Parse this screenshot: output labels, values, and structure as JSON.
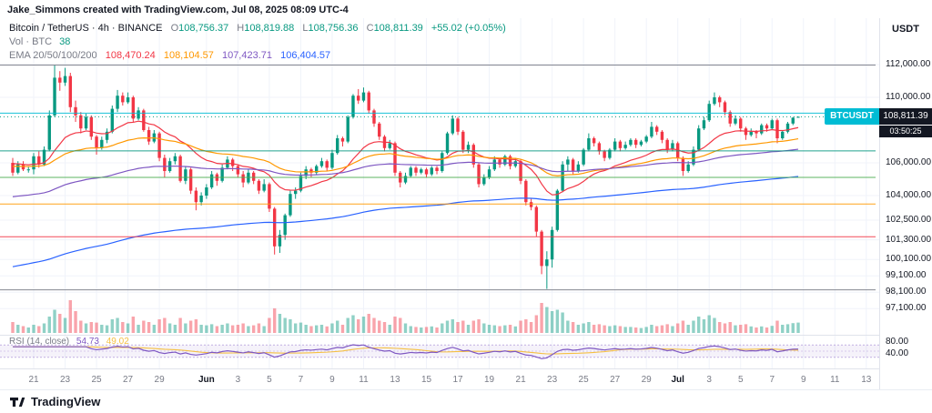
{
  "attribution": "Jake_Simmons created with TradingView.com, Jul 08, 2025 08:09 UTC-4",
  "header": {
    "title": "Bitcoin / TetherUS · 4h · BINANCE",
    "ohlc": {
      "o_label": "O",
      "o": "108,756.37",
      "h_label": "H",
      "h": "108,819.88",
      "l_label": "L",
      "l": "108,756.36",
      "c_label": "C",
      "c": "108,811.39",
      "change": "+55.02 (+0.05%)"
    },
    "volume": {
      "label": "Vol · BTC",
      "value": "38"
    },
    "ema": {
      "label": "EMA 20/50/100/200",
      "values": [
        "108,470.24",
        "108,104.57",
        "107,423.71",
        "106,404.57"
      ]
    }
  },
  "rsi_legend": {
    "label": "RSI (14, close)",
    "value": "54.73",
    "ma_value": "49.02"
  },
  "price_tag": {
    "symbol": "BTCUSDT",
    "price": "108,811.39",
    "countdown": "03:50:25"
  },
  "axis": {
    "currency": "USDT",
    "price_labels": [
      {
        "text": "112,000.00",
        "value": 112000
      },
      {
        "text": "110,000.00",
        "value": 110000
      },
      {
        "text": "106,000.00",
        "value": 106000
      },
      {
        "text": "104,000.00",
        "value": 104000
      },
      {
        "text": "102,500.00",
        "value": 102500
      },
      {
        "text": "101,300.00",
        "value": 101300
      },
      {
        "text": "100,100.00",
        "value": 100100
      },
      {
        "text": "99,100.00",
        "value": 99100
      },
      {
        "text": "98,100.00",
        "value": 98100
      },
      {
        "text": "97,100.00",
        "value": 97100
      }
    ],
    "rsi_labels": [
      {
        "text": "80.00",
        "value": 80
      },
      {
        "text": "40.00",
        "value": 40
      }
    ],
    "time_labels": [
      {
        "text": "21",
        "d": 0
      },
      {
        "text": "23",
        "d": 2
      },
      {
        "text": "25",
        "d": 4
      },
      {
        "text": "27",
        "d": 6
      },
      {
        "text": "29",
        "d": 8
      },
      {
        "text": "Jun",
        "d": 11,
        "major": true
      },
      {
        "text": "3",
        "d": 13
      },
      {
        "text": "5",
        "d": 15
      },
      {
        "text": "7",
        "d": 17
      },
      {
        "text": "9",
        "d": 19
      },
      {
        "text": "11",
        "d": 21
      },
      {
        "text": "13",
        "d": 23
      },
      {
        "text": "15",
        "d": 25
      },
      {
        "text": "17",
        "d": 27
      },
      {
        "text": "19",
        "d": 29
      },
      {
        "text": "21",
        "d": 31
      },
      {
        "text": "23",
        "d": 33
      },
      {
        "text": "25",
        "d": 35
      },
      {
        "text": "27",
        "d": 37
      },
      {
        "text": "29",
        "d": 39
      },
      {
        "text": "Jul",
        "d": 41,
        "major": true
      },
      {
        "text": "3",
        "d": 43
      },
      {
        "text": "5",
        "d": 45
      },
      {
        "text": "7",
        "d": 47
      },
      {
        "text": "9",
        "d": 49
      },
      {
        "text": "11",
        "d": 51
      },
      {
        "text": "13",
        "d": 53
      }
    ]
  },
  "footer": {
    "brand": "TradingView"
  },
  "chart_data": {
    "type": "candlestick",
    "title": "Bitcoin / TetherUS",
    "symbol": "BTCUSDT",
    "exchange": "BINANCE",
    "interval": "4h",
    "yaxis_range": [
      97000,
      112600
    ],
    "volume_unit": "BTC",
    "last_volume": 38,
    "bars_per_label_day": 3,
    "time_label_offset_bars": 4,
    "fib": [
      {
        "level": "1",
        "text": "1 (111,973.72)",
        "value": 111973.72,
        "color": "#787b86"
      },
      {
        "level": "0.786",
        "text": "0.786 (109,035.27)",
        "value": 109035.27,
        "color": "#00bcd4"
      },
      {
        "level": "0.618",
        "text": "0.618 (106,728.42)",
        "value": 106728.42,
        "color": "#089981"
      },
      {
        "level": "0.5",
        "text": "0.5 (105,108.15)",
        "value": 105108.15,
        "color": "#4caf50"
      },
      {
        "level": "0.382",
        "text": "0.382 (103,487.87)",
        "value": 103487.87,
        "color": "#ff9800"
      },
      {
        "level": "0.236",
        "text": "0.236 (101,483.12)",
        "value": 101483.12,
        "color": "#f23645"
      },
      {
        "level": "0",
        "text": "0 (98,242.57)",
        "value": 98242.57,
        "color": "#787b86"
      }
    ],
    "indicators": {
      "ema": {
        "periods": [
          20,
          50,
          100,
          200
        ],
        "seeds": [
          106000,
          105800,
          103900,
          99600
        ],
        "colors": [
          "#f23645",
          "#ff9800",
          "#7e57c2",
          "#2962ff"
        ],
        "last_values": [
          108470.24,
          108104.57,
          107423.71,
          106404.57
        ]
      },
      "rsi": {
        "period": 14,
        "color": "#7e57c2",
        "ma_color": "#f5c043",
        "band": [
          30,
          70
        ],
        "last": 54.73,
        "ma_last": 49.02
      }
    },
    "candles": [
      [
        106000,
        106300,
        105200,
        105400,
        40
      ],
      [
        105400,
        106100,
        105300,
        105900,
        30
      ],
      [
        105900,
        106100,
        105500,
        105600,
        25
      ],
      [
        105600,
        105800,
        105400,
        105600,
        20
      ],
      [
        105600,
        106600,
        105300,
        106400,
        30
      ],
      [
        106400,
        106700,
        105700,
        105900,
        25
      ],
      [
        105900,
        107000,
        105800,
        106800,
        35
      ],
      [
        106800,
        109200,
        106700,
        108900,
        60
      ],
      [
        108900,
        111970,
        108800,
        111200,
        85
      ],
      [
        111200,
        111600,
        110400,
        110900,
        70
      ],
      [
        110900,
        111800,
        110700,
        111300,
        55
      ],
      [
        111300,
        111500,
        109100,
        109400,
        120
      ],
      [
        109400,
        109800,
        108500,
        108900,
        80
      ],
      [
        108900,
        109100,
        107800,
        108100,
        45
      ],
      [
        108100,
        109000,
        108000,
        108800,
        35
      ],
      [
        108800,
        108900,
        107400,
        107600,
        40
      ],
      [
        107600,
        107700,
        106500,
        106900,
        38
      ],
      [
        106900,
        107600,
        106800,
        107400,
        30
      ],
      [
        107400,
        108100,
        107200,
        107900,
        28
      ],
      [
        107900,
        109500,
        107800,
        109300,
        50
      ],
      [
        109300,
        110450,
        109100,
        110100,
        55
      ],
      [
        110100,
        110300,
        109500,
        109700,
        40
      ],
      [
        109700,
        110300,
        109600,
        110000,
        35
      ],
      [
        110000,
        110100,
        108500,
        108700,
        60
      ],
      [
        108700,
        109400,
        108600,
        109200,
        30
      ],
      [
        109200,
        109300,
        107900,
        108000,
        45
      ],
      [
        108000,
        108200,
        107100,
        107300,
        40
      ],
      [
        107300,
        108000,
        107200,
        107800,
        30
      ],
      [
        107800,
        107900,
        106100,
        106300,
        50
      ],
      [
        106300,
        106500,
        105100,
        105500,
        55
      ],
      [
        105500,
        106300,
        105400,
        106100,
        35
      ],
      [
        106100,
        106600,
        105900,
        106400,
        30
      ],
      [
        106400,
        106500,
        104800,
        104900,
        55
      ],
      [
        104900,
        105800,
        104700,
        105600,
        35
      ],
      [
        105600,
        105700,
        104100,
        104300,
        45
      ],
      [
        104300,
        104500,
        103100,
        103600,
        50
      ],
      [
        103600,
        104200,
        103400,
        104000,
        30
      ],
      [
        104000,
        104700,
        103800,
        104500,
        28
      ],
      [
        104500,
        105500,
        104400,
        105300,
        32
      ],
      [
        105300,
        105400,
        104600,
        104900,
        25
      ],
      [
        104900,
        105900,
        104800,
        105700,
        30
      ],
      [
        105700,
        106400,
        105600,
        106200,
        35
      ],
      [
        106200,
        106300,
        105500,
        105800,
        28
      ],
      [
        105800,
        105900,
        105100,
        105300,
        30
      ],
      [
        105300,
        105500,
        104500,
        104800,
        35
      ],
      [
        104800,
        105600,
        104700,
        105400,
        25
      ],
      [
        105400,
        105500,
        104700,
        104900,
        28
      ],
      [
        104900,
        105000,
        104100,
        104300,
        35
      ],
      [
        104300,
        105000,
        104200,
        104700,
        25
      ],
      [
        104700,
        104800,
        103000,
        103200,
        55
      ],
      [
        103200,
        103300,
        100400,
        100900,
        90
      ],
      [
        100900,
        101900,
        100500,
        101600,
        70
      ],
      [
        101600,
        102900,
        101300,
        102800,
        55
      ],
      [
        102800,
        104300,
        102700,
        104100,
        50
      ],
      [
        104100,
        104500,
        103800,
        104300,
        35
      ],
      [
        104300,
        105400,
        104200,
        105200,
        38
      ],
      [
        105200,
        105800,
        105000,
        105600,
        30
      ],
      [
        105600,
        105700,
        105100,
        105400,
        25
      ],
      [
        105400,
        105900,
        105300,
        105800,
        28
      ],
      [
        105800,
        106300,
        105700,
        106100,
        30
      ],
      [
        106100,
        106200,
        105500,
        105700,
        24
      ],
      [
        105700,
        106800,
        105600,
        106600,
        35
      ],
      [
        106600,
        107700,
        106500,
        107500,
        45
      ],
      [
        107500,
        107600,
        107000,
        107300,
        30
      ],
      [
        107300,
        108900,
        107200,
        108800,
        55
      ],
      [
        108800,
        110200,
        108700,
        110100,
        65
      ],
      [
        110100,
        110500,
        109600,
        109800,
        50
      ],
      [
        109800,
        110600,
        109700,
        110300,
        60
      ],
      [
        110300,
        110400,
        109000,
        109200,
        70
      ],
      [
        109200,
        109300,
        108200,
        108400,
        55
      ],
      [
        108400,
        108500,
        107400,
        107600,
        45
      ],
      [
        107600,
        107700,
        106700,
        106900,
        40
      ],
      [
        106900,
        107400,
        106800,
        107200,
        30
      ],
      [
        107200,
        107300,
        105200,
        105400,
        60
      ],
      [
        105400,
        105500,
        104500,
        104800,
        55
      ],
      [
        104800,
        105400,
        104700,
        105200,
        35
      ],
      [
        105200,
        105800,
        105100,
        105700,
        25
      ],
      [
        105700,
        105800,
        105200,
        105400,
        22
      ],
      [
        105400,
        105700,
        105300,
        105600,
        20
      ],
      [
        105600,
        105700,
        105100,
        105300,
        22
      ],
      [
        105300,
        105800,
        105200,
        105700,
        24
      ],
      [
        105700,
        105800,
        105300,
        105500,
        20
      ],
      [
        105500,
        106700,
        105400,
        106600,
        35
      ],
      [
        106600,
        107900,
        106500,
        107800,
        45
      ],
      [
        107800,
        108900,
        107700,
        108700,
        50
      ],
      [
        108700,
        108800,
        107700,
        107900,
        40
      ],
      [
        107900,
        108000,
        106600,
        106800,
        45
      ],
      [
        106800,
        107300,
        106600,
        107100,
        30
      ],
      [
        107100,
        107200,
        105700,
        105900,
        45
      ],
      [
        105900,
        106000,
        104500,
        104700,
        50
      ],
      [
        104700,
        105300,
        104600,
        105100,
        35
      ],
      [
        105100,
        105800,
        105000,
        105600,
        30
      ],
      [
        105600,
        106400,
        105500,
        106200,
        28
      ],
      [
        106200,
        106300,
        105700,
        105900,
        25
      ],
      [
        105900,
        106500,
        105800,
        106400,
        28
      ],
      [
        106400,
        106500,
        105600,
        105800,
        30
      ],
      [
        105800,
        106300,
        105700,
        106100,
        24
      ],
      [
        106100,
        106200,
        104700,
        104900,
        45
      ],
      [
        104900,
        105000,
        103400,
        103600,
        50
      ],
      [
        103600,
        103800,
        103100,
        103300,
        40
      ],
      [
        103300,
        103400,
        101500,
        101800,
        65
      ],
      [
        101800,
        101900,
        99200,
        99700,
        110
      ],
      [
        99700,
        100600,
        98300,
        100100,
        95
      ],
      [
        100100,
        102100,
        99600,
        101900,
        80
      ],
      [
        101900,
        104400,
        101800,
        104300,
        85
      ],
      [
        104300,
        106100,
        104200,
        105900,
        75
      ],
      [
        105900,
        106400,
        105500,
        106200,
        45
      ],
      [
        106200,
        106300,
        105300,
        105500,
        40
      ],
      [
        105500,
        106100,
        105400,
        105900,
        30
      ],
      [
        105900,
        106900,
        105800,
        106800,
        35
      ],
      [
        106800,
        107800,
        106700,
        107500,
        40
      ],
      [
        107500,
        107600,
        107000,
        107200,
        30
      ],
      [
        107200,
        107300,
        106500,
        106700,
        32
      ],
      [
        106700,
        106800,
        106100,
        106300,
        28
      ],
      [
        106300,
        106900,
        106200,
        106800,
        25
      ],
      [
        106800,
        107500,
        106700,
        107300,
        28
      ],
      [
        107300,
        107400,
        106700,
        106900,
        25
      ],
      [
        106900,
        107300,
        106800,
        107100,
        22
      ],
      [
        107100,
        107500,
        107000,
        107400,
        22
      ],
      [
        107400,
        107500,
        106900,
        107100,
        20
      ],
      [
        107100,
        107400,
        107000,
        107300,
        18
      ],
      [
        107300,
        107700,
        107200,
        107600,
        22
      ],
      [
        107600,
        108500,
        107500,
        108200,
        30
      ],
      [
        108200,
        108300,
        107700,
        107900,
        25
      ],
      [
        107900,
        108000,
        107200,
        107400,
        28
      ],
      [
        107400,
        107500,
        106600,
        106800,
        32
      ],
      [
        106800,
        107400,
        106700,
        107200,
        25
      ],
      [
        107200,
        107300,
        106100,
        106300,
        35
      ],
      [
        106300,
        106400,
        105200,
        105500,
        45
      ],
      [
        105500,
        106100,
        105400,
        105900,
        30
      ],
      [
        105900,
        107000,
        105800,
        106800,
        45
      ],
      [
        106800,
        108300,
        106700,
        108100,
        60
      ],
      [
        108100,
        108800,
        108000,
        108600,
        50
      ],
      [
        108600,
        109800,
        108500,
        109600,
        65
      ],
      [
        109600,
        110300,
        109500,
        110000,
        55
      ],
      [
        110000,
        110100,
        109400,
        109700,
        40
      ],
      [
        109700,
        109800,
        108900,
        109100,
        35
      ],
      [
        109100,
        109200,
        108200,
        108400,
        40
      ],
      [
        108400,
        108900,
        108300,
        108700,
        28
      ],
      [
        108700,
        108800,
        107900,
        108100,
        30
      ],
      [
        108100,
        108200,
        107400,
        107700,
        32
      ],
      [
        107700,
        108100,
        107600,
        107900,
        24
      ],
      [
        107900,
        108000,
        107500,
        107800,
        20
      ],
      [
        107800,
        108400,
        107700,
        108300,
        24
      ],
      [
        108300,
        108400,
        107900,
        108100,
        20
      ],
      [
        108100,
        108700,
        108000,
        108600,
        26
      ],
      [
        108600,
        108700,
        107200,
        107500,
        45
      ],
      [
        107500,
        108000,
        107400,
        107900,
        30
      ],
      [
        107900,
        108500,
        107800,
        108400,
        32
      ],
      [
        108400,
        108800,
        108300,
        108756,
        36
      ],
      [
        108756.37,
        108819.88,
        108756.36,
        108811.39,
        38
      ]
    ]
  }
}
